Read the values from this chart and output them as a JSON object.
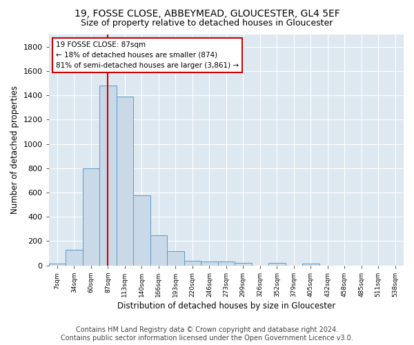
{
  "title": "19, FOSSE CLOSE, ABBEYMEAD, GLOUCESTER, GL4 5EF",
  "subtitle": "Size of property relative to detached houses in Gloucester",
  "xlabel": "Distribution of detached houses by size in Gloucester",
  "ylabel": "Number of detached properties",
  "categories": [
    "7sqm",
    "34sqm",
    "60sqm",
    "87sqm",
    "113sqm",
    "140sqm",
    "166sqm",
    "193sqm",
    "220sqm",
    "246sqm",
    "273sqm",
    "299sqm",
    "326sqm",
    "352sqm",
    "379sqm",
    "405sqm",
    "432sqm",
    "458sqm",
    "485sqm",
    "511sqm",
    "538sqm"
  ],
  "values": [
    15,
    130,
    800,
    1480,
    1390,
    575,
    250,
    120,
    35,
    30,
    30,
    20,
    0,
    20,
    0,
    15,
    0,
    0,
    0,
    0,
    0
  ],
  "bar_color": "#c9d9e8",
  "bar_edge_color": "#5a9bc9",
  "vline_x": 3,
  "vline_color": "#cc0000",
  "annotation_text": "19 FOSSE CLOSE: 87sqm\n← 18% of detached houses are smaller (874)\n81% of semi-detached houses are larger (3,861) →",
  "annotation_box_color": "#cc0000",
  "ylim": [
    0,
    1900
  ],
  "yticks": [
    0,
    200,
    400,
    600,
    800,
    1000,
    1200,
    1400,
    1600,
    1800
  ],
  "background_color": "#dde8f0",
  "grid_color": "#ffffff",
  "footer": "Contains HM Land Registry data © Crown copyright and database right 2024.\nContains public sector information licensed under the Open Government Licence v3.0.",
  "title_fontsize": 10,
  "subtitle_fontsize": 9,
  "xlabel_fontsize": 8.5,
  "ylabel_fontsize": 8.5,
  "footer_fontsize": 7
}
